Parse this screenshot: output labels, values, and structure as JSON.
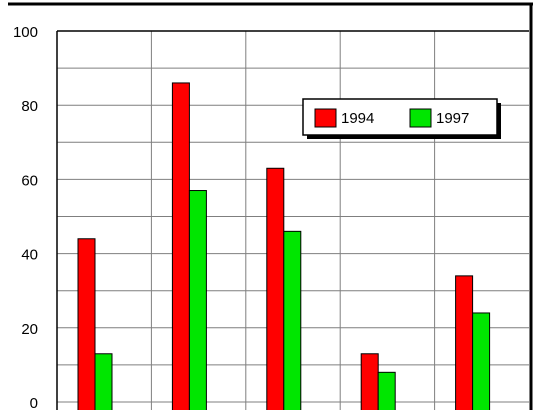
{
  "chart_data": {
    "type": "bar",
    "title": "",
    "xlabel": "",
    "ylabel": "",
    "categories": [
      "",
      "",
      "",
      "",
      ""
    ],
    "series": [
      {
        "name": "1994",
        "color": "#ff0000",
        "values": [
          44,
          86,
          63,
          13,
          34
        ]
      },
      {
        "name": "1997",
        "color": "#00e600",
        "values": [
          13,
          57,
          46,
          8,
          24
        ]
      }
    ],
    "ylim": [
      0,
      100
    ],
    "yticks": [
      0,
      20,
      40,
      60,
      80,
      100
    ],
    "ytick_labels": [
      "0",
      "20",
      "40",
      "60",
      "80",
      "100"
    ],
    "grid": true,
    "legend": "top-right"
  }
}
